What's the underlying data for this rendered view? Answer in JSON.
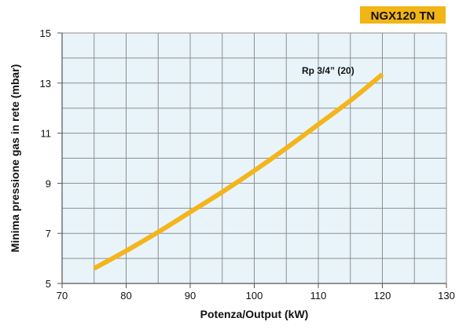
{
  "badge": {
    "text": "NGX120 TN",
    "background_color": "#F2B516",
    "text_color": "#111111"
  },
  "colors": {
    "plot_background": "#E8F4FA",
    "grid": "#8E8E8E",
    "curve": "#F4B51C",
    "text": "#111111"
  },
  "chart_data": {
    "type": "line",
    "title": "",
    "xlabel": "Potenza/Output (kW)",
    "ylabel": "Minima pressione gas in rete (mbar)",
    "xlim": [
      70,
      130
    ],
    "ylim": [
      5,
      15
    ],
    "x_ticks": [
      70,
      80,
      90,
      100,
      110,
      120,
      130
    ],
    "y_ticks": [
      5,
      7,
      9,
      11,
      13,
      15
    ],
    "x_minor_step": 5,
    "y_minor_step": 1,
    "grid": true,
    "series": [
      {
        "name": "Rp 3/4” (20)",
        "x": [
          75,
          80,
          85,
          90,
          95,
          100,
          105,
          110,
          115,
          120
        ],
        "y": [
          5.6,
          6.3,
          7.05,
          7.85,
          8.65,
          9.5,
          10.4,
          11.35,
          12.3,
          13.35
        ]
      }
    ]
  }
}
